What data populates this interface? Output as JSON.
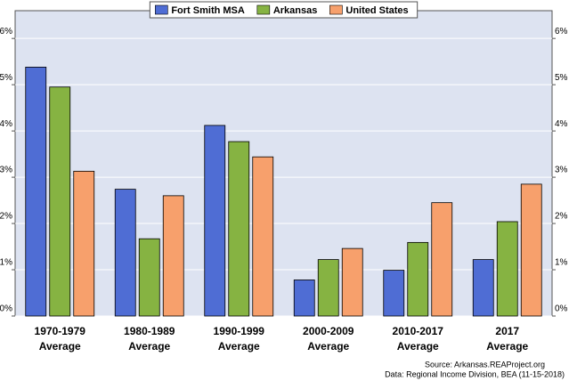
{
  "chart_data": {
    "type": "bar",
    "categories": [
      [
        "1970-1979",
        "Average"
      ],
      [
        "1980-1989",
        "Average"
      ],
      [
        "1990-1999",
        "Average"
      ],
      [
        "2000-2009",
        "Average"
      ],
      [
        "2010-2017",
        "Average"
      ],
      [
        "2017",
        "Average"
      ]
    ],
    "series": [
      {
        "name": "Fort Smith MSA",
        "color": "#4f6dd4",
        "values": [
          5.38,
          2.74,
          4.12,
          0.78,
          0.99,
          1.22
        ]
      },
      {
        "name": "Arkansas",
        "color": "#86b342",
        "values": [
          4.95,
          1.67,
          3.77,
          1.22,
          1.59,
          2.04
        ]
      },
      {
        "name": "United States",
        "color": "#f7a06c",
        "values": [
          3.13,
          2.6,
          3.44,
          1.46,
          2.45,
          2.85
        ]
      }
    ],
    "ylim": [
      0,
      6.6
    ],
    "yticks": [
      {
        "value": 0,
        "label": "0%"
      },
      {
        "value": 1,
        "label": "1%"
      },
      {
        "value": 2,
        "label": "2%"
      },
      {
        "value": 3,
        "label": "3%"
      },
      {
        "value": 4,
        "label": "4%"
      },
      {
        "value": 5,
        "label": "5%"
      },
      {
        "value": 6,
        "label": "6%"
      }
    ],
    "grid": true,
    "legend": "top",
    "source": [
      "Source: Arkansas.REAProject.org",
      "Data: Regional Income Division, BEA (11-15-2018)"
    ]
  }
}
